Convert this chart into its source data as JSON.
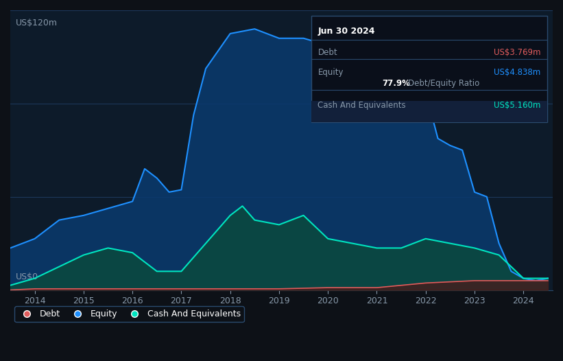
{
  "bg_color": "#0d1117",
  "plot_bg_color": "#0d1b2a",
  "grid_color": "#1e3a5f",
  "title_y_label": "US$120m",
  "zero_label": "US$0",
  "x_ticks": [
    "2014",
    "2015",
    "2016",
    "2017",
    "2018",
    "2019",
    "2020",
    "2021",
    "2022",
    "2023",
    "2024"
  ],
  "ylim": [
    0,
    120
  ],
  "tooltip_title": "Jun 30 2024",
  "tooltip_debt_label": "Debt",
  "tooltip_debt_value": "US$3.769m",
  "tooltip_equity_label": "Equity",
  "tooltip_equity_value": "US$4.838m",
  "tooltip_ratio": "77.9%",
  "tooltip_ratio_label": "Debt/Equity Ratio",
  "tooltip_cash_label": "Cash And Equivalents",
  "tooltip_cash_value": "US$5.160m",
  "debt_color": "#e05c5c",
  "equity_color": "#1e90ff",
  "cash_color": "#00e5c0",
  "equity_fill_color": "#0a3a6e",
  "cash_fill_color": "#0a4a3e",
  "sep_color": "#2a4a6e",
  "legend_border_color": "#2a4a6e",
  "equity_data": {
    "years": [
      2013.5,
      2014.0,
      2014.5,
      2015.0,
      2015.5,
      2016.0,
      2016.25,
      2016.5,
      2016.75,
      2017.0,
      2017.25,
      2017.5,
      2018.0,
      2018.5,
      2019.0,
      2019.5,
      2020.0,
      2020.5,
      2021.0,
      2021.5,
      2022.0,
      2022.25,
      2022.5,
      2022.75,
      2023.0,
      2023.25,
      2023.5,
      2023.75,
      2024.0,
      2024.25,
      2024.5
    ],
    "values": [
      18,
      22,
      30,
      32,
      35,
      38,
      52,
      48,
      42,
      43,
      75,
      95,
      110,
      112,
      108,
      108,
      105,
      92,
      88,
      88,
      85,
      65,
      62,
      60,
      42,
      40,
      20,
      8,
      5,
      4,
      5
    ]
  },
  "debt_data": {
    "years": [
      2013.5,
      2014.0,
      2015.0,
      2016.0,
      2017.0,
      2018.0,
      2019.0,
      2020.0,
      2021.0,
      2022.0,
      2023.0,
      2023.5,
      2024.0,
      2024.5
    ],
    "values": [
      0,
      0.5,
      0.5,
      0.5,
      0.5,
      0.5,
      0.5,
      1,
      1,
      3,
      4,
      4,
      4,
      4
    ]
  },
  "cash_data": {
    "years": [
      2013.5,
      2014.0,
      2014.5,
      2015.0,
      2015.5,
      2016.0,
      2016.5,
      2017.0,
      2017.5,
      2018.0,
      2018.25,
      2018.5,
      2019.0,
      2019.5,
      2020.0,
      2020.5,
      2021.0,
      2021.5,
      2022.0,
      2022.5,
      2023.0,
      2023.5,
      2024.0,
      2024.5
    ],
    "values": [
      2,
      5,
      10,
      15,
      18,
      16,
      8,
      8,
      20,
      32,
      36,
      30,
      28,
      32,
      22,
      20,
      18,
      18,
      22,
      20,
      18,
      15,
      5,
      5
    ]
  }
}
